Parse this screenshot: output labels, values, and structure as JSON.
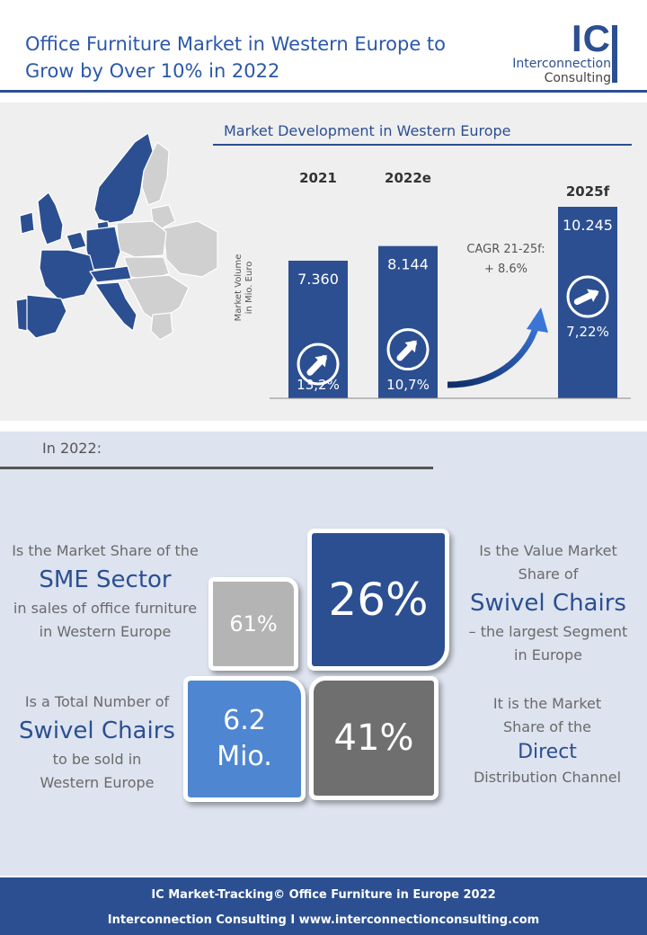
{
  "header": {
    "title": "Office Furniture Market in Western Europe to Grow by Over 10% in 2022",
    "logo_mark": "IC",
    "logo_line1": "Interconnection",
    "logo_line2": "Consulting"
  },
  "market": {
    "title": "Market Development  in Western Europe",
    "map_highlight_color": "#2b4f91",
    "map_base_color": "#d0d0d0"
  },
  "chart_data": {
    "type": "bar",
    "title": "Market Development  in Western Europe",
    "ylabel": "Market Volume in Mio. Euro",
    "categories": [
      "2021",
      "2022e",
      "2025f"
    ],
    "values": [
      7.36,
      8.144,
      10.245
    ],
    "value_labels": [
      "7.360",
      "8.144",
      "10.245"
    ],
    "growth_labels": [
      "13,2%",
      "10,7%",
      "7,22%"
    ],
    "annotation": "CAGR 21-25f: + 8.6%",
    "annotation_line1": "CAGR 21-25f:",
    "annotation_line2": "+ 8.6%",
    "ylim": [
      0,
      10.245
    ],
    "color": "#2b4f91"
  },
  "facts": {
    "intro": "In 2022:",
    "sme": {
      "line1": "Is the Market Share of the",
      "emph": "SME Sector",
      "line2": "in sales of office furniture",
      "line3": "in Western Europe",
      "value": "61%",
      "color": "#b4b4b4"
    },
    "swivel_value": {
      "line1": "Is the Value Market",
      "line2": "Share of",
      "emph": "Swivel Chairs",
      "line3": "– the  largest Segment",
      "line4": "in Europe",
      "value": "26%",
      "color": "#2b4f91"
    },
    "swivel_count": {
      "line1": "Is a Total Number of",
      "emph": "Swivel Chairs",
      "line2": "to be sold in",
      "line3": "Western Europe",
      "value_line1": "6.2",
      "value_line2": "Mio.",
      "color": "#4f86d1"
    },
    "direct": {
      "line1": "It is the Market",
      "line2": "Share of the",
      "emph": "Direct",
      "line3": "Distribution Channel",
      "value": "41%",
      "color": "#6f6f6f"
    }
  },
  "footer": {
    "line1": "IC Market-Tracking© Office Furniture in Europe 2022",
    "line2": "Interconnection Consulting I www.interconnectionconsulting.com"
  }
}
